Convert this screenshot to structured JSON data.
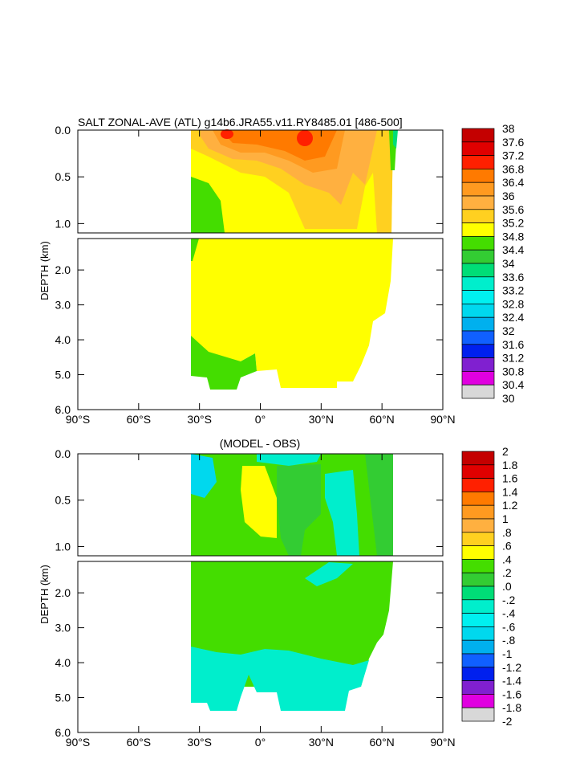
{
  "chart_data": [
    {
      "type": "heatmap",
      "title": "SALT ZONAL-AVE (ATL) g14b6.JRA55.v11.RY8485.01 [486-500]",
      "ylabel": "DEPTH (km)",
      "x_ticks": [
        "90°S",
        "60°S",
        "30°S",
        "0°",
        "30°N",
        "60°N",
        "90°N"
      ],
      "y_ticks_upper": [
        "0.0",
        "0.5",
        "1.0"
      ],
      "y_ticks_lower": [
        "2.0",
        "3.0",
        "4.0",
        "5.0",
        "6.0"
      ],
      "xlim": [
        -90,
        90
      ],
      "ylim_upper": [
        0,
        1.1
      ],
      "ylim_lower": [
        1.1,
        6.0
      ],
      "colorbar": {
        "levels": [
          "38",
          "37.6",
          "37.2",
          "36.8",
          "36.4",
          "36",
          "35.6",
          "35.2",
          "34.8",
          "34.4",
          "34",
          "33.6",
          "33.2",
          "32.8",
          "32.4",
          "32",
          "31.6",
          "31.2",
          "30.8",
          "30.4",
          "30"
        ],
        "colors": [
          "#c40000",
          "#e00000",
          "#ff2000",
          "#ff7a00",
          "#ff9a20",
          "#ffb040",
          "#ffd020",
          "#ffff00",
          "#44dd00",
          "#33cc33",
          "#00dd77",
          "#00eecc",
          "#00f0f0",
          "#00d8ee",
          "#00b0ee",
          "#1060ff",
          "#0020ee",
          "#8020d0",
          "#e000e0",
          "#d8d8d8",
          "#707070"
        ]
      },
      "fill_colors": {
        "ocean": "#ffff00",
        "south_band": "#44dd00",
        "subtropical": "#ffd020",
        "high": "#ffb040",
        "peak": "#ff2000"
      }
    },
    {
      "type": "heatmap",
      "title": "(MODEL - OBS)",
      "ylabel": "DEPTH (km)",
      "x_ticks": [
        "90°S",
        "60°S",
        "30°S",
        "0°",
        "30°N",
        "60°N",
        "90°N"
      ],
      "y_ticks_upper": [
        "0.0",
        "0.5",
        "1.0"
      ],
      "y_ticks_lower": [
        "2.0",
        "3.0",
        "4.0",
        "5.0",
        "6.0"
      ],
      "xlim": [
        -90,
        90
      ],
      "ylim_upper": [
        0,
        1.1
      ],
      "ylim_lower": [
        1.1,
        6.0
      ],
      "colorbar": {
        "levels": [
          "2",
          "1.8",
          "1.6",
          "1.4",
          "1.2",
          "1",
          ".8",
          ".6",
          ".4",
          ".2",
          ".0",
          "-.2",
          "-.4",
          "-.6",
          "-.8",
          "-1",
          "-1.2",
          "-1.4",
          "-1.6",
          "-1.8",
          "-2"
        ],
        "colors": [
          "#c40000",
          "#e00000",
          "#ff2000",
          "#ff7a00",
          "#ff9a20",
          "#ffb040",
          "#ffd020",
          "#ffff00",
          "#44dd00",
          "#33cc33",
          "#00dd77",
          "#00eecc",
          "#00f0f0",
          "#00d8ee",
          "#00b0ee",
          "#1060ff",
          "#0020ee",
          "#8020d0",
          "#e000e0",
          "#d8d8d8",
          "#707070"
        ]
      },
      "fill_colors": {
        "ocean": "#44dd00",
        "positive": "#ffff00",
        "negative": "#00f0d8",
        "slight": "#33cc33"
      }
    }
  ]
}
